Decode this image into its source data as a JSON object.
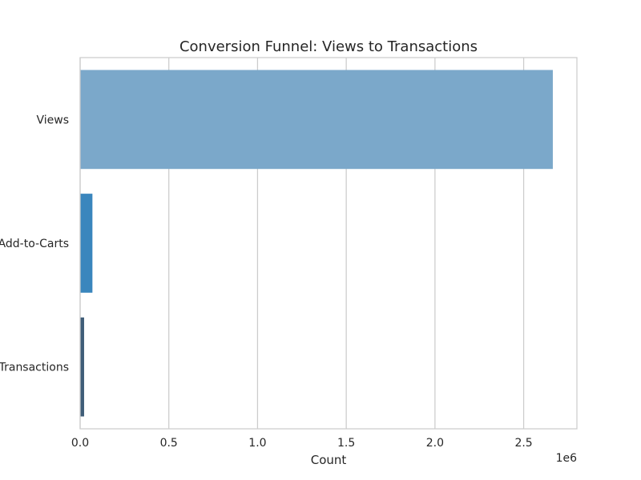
{
  "chart_data": {
    "type": "bar",
    "orientation": "horizontal",
    "title": "Conversion Funnel: Views to Transactions",
    "xlabel": "Count",
    "ylabel": "",
    "x_scale_label": "1e6",
    "categories": [
      "Views",
      "Add-to-Carts",
      "Transactions"
    ],
    "values": [
      2664312,
      69332,
      22457
    ],
    "colors": [
      "#7ba8ca",
      "#3a86bd",
      "#3f5d78"
    ],
    "xlim": [
      0,
      2800000
    ],
    "xticks": [
      0,
      500000,
      1000000,
      1500000,
      2000000,
      2500000
    ],
    "xtick_labels": [
      "0.0",
      "0.5",
      "1.0",
      "1.5",
      "2.0",
      "2.5"
    ],
    "grid": true,
    "legend": "none"
  }
}
